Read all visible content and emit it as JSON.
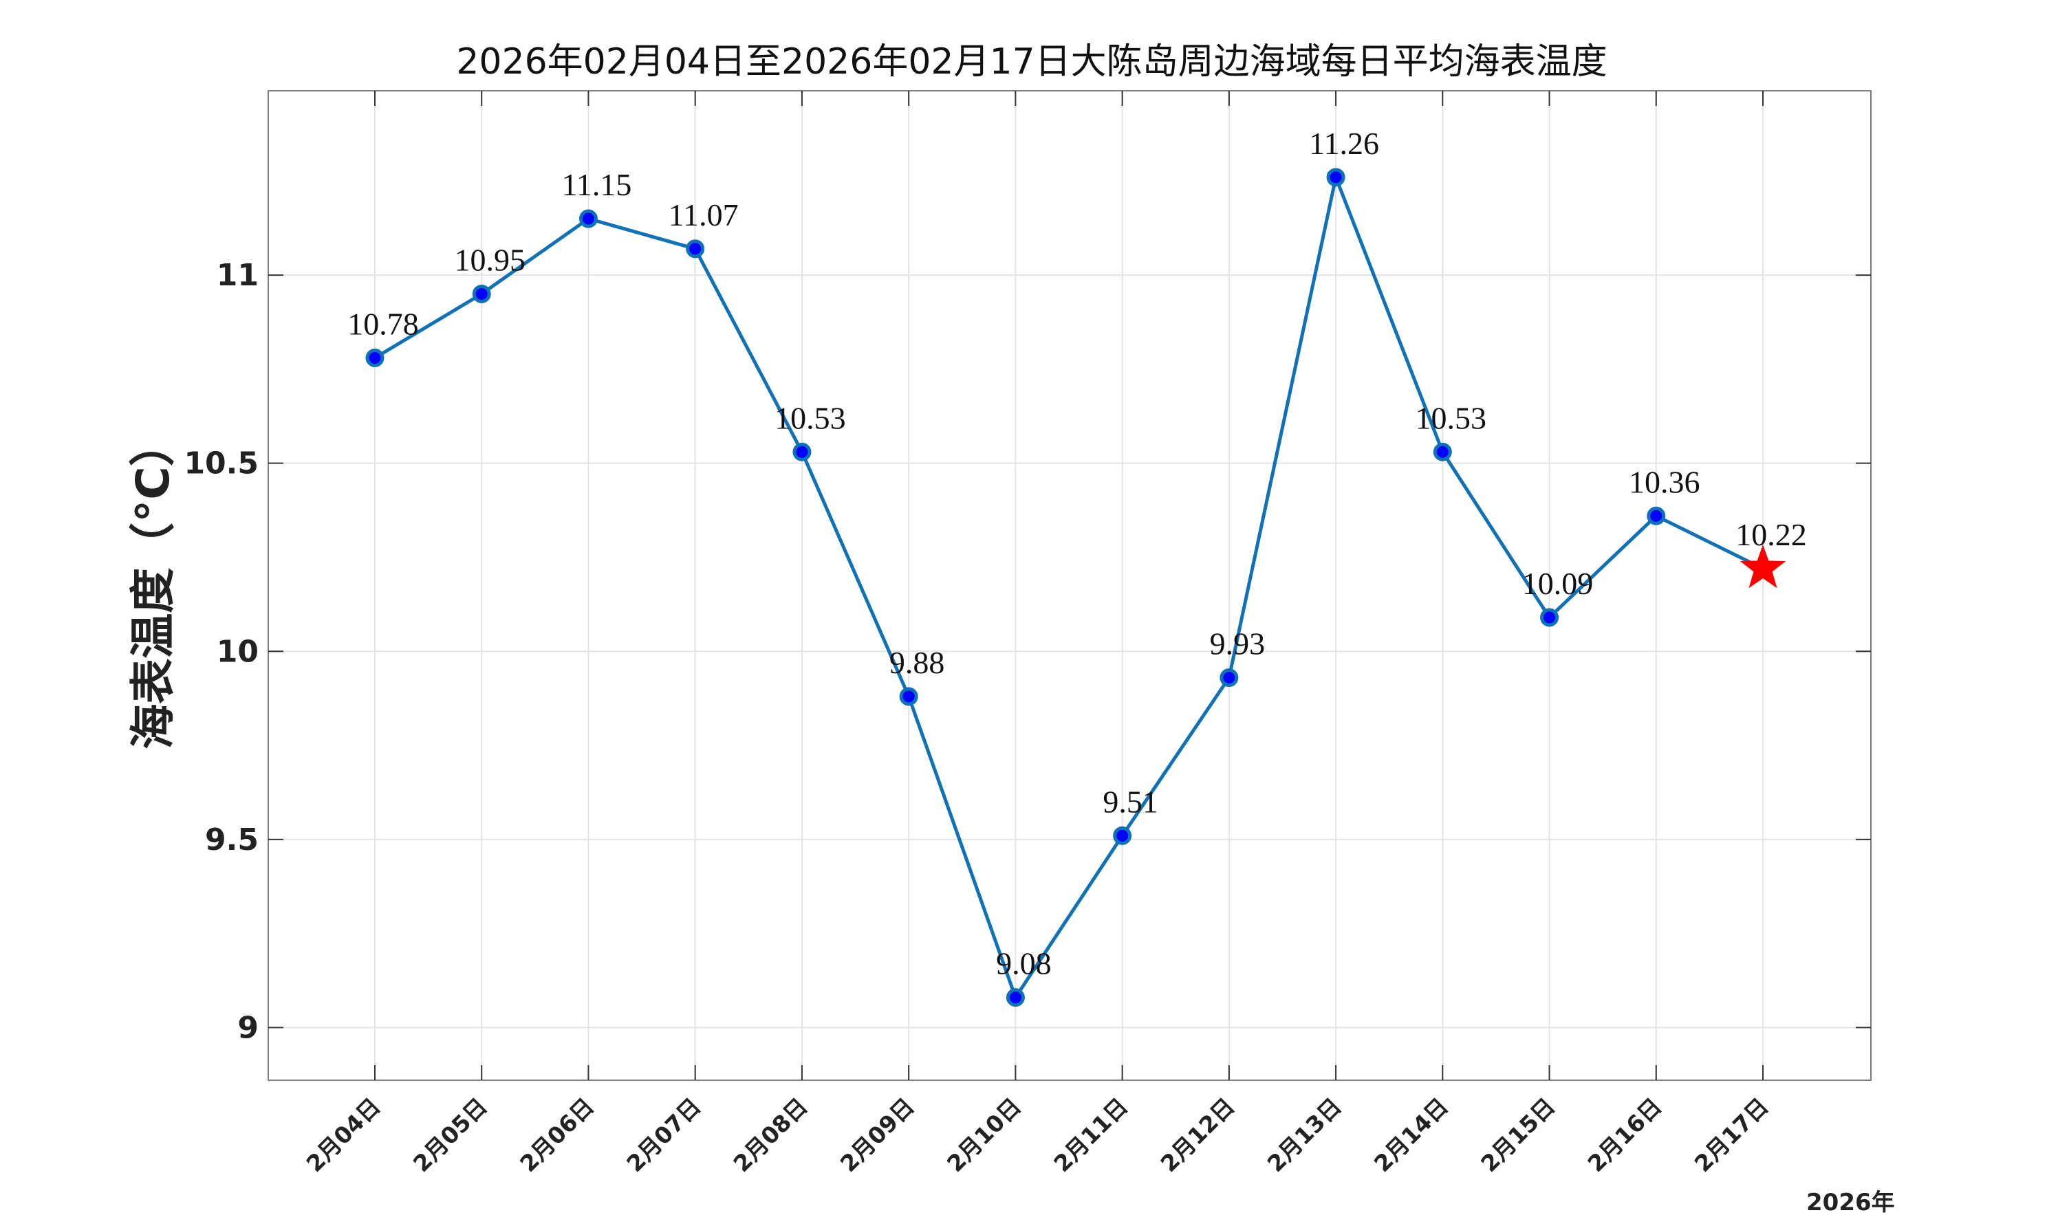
{
  "chart_data": {
    "type": "line",
    "title": "2026年02月04日至2026年02月17日大陈岛周边海域每日平均海表温度",
    "ylabel": "海表温度（°C）",
    "xlabel": "",
    "year_label": "2026年",
    "categories": [
      "2月04日",
      "2月05日",
      "2月06日",
      "2月07日",
      "2月08日",
      "2月09日",
      "2月10日",
      "2月11日",
      "2月12日",
      "2月13日",
      "2月14日",
      "2月15日",
      "2月16日",
      "2月17日"
    ],
    "values": [
      10.78,
      10.95,
      11.15,
      11.07,
      10.53,
      9.88,
      9.08,
      9.51,
      9.93,
      11.26,
      10.53,
      10.09,
      10.36,
      10.22
    ],
    "data_labels": [
      "10.78",
      "10.95",
      "11.15",
      "11.07",
      "10.53",
      "9.88",
      "9.08",
      "9.51",
      "9.93",
      "11.26",
      "10.53",
      "10.09",
      "10.36",
      "10.22"
    ],
    "ylim": [
      8.86,
      11.49
    ],
    "yticks": [
      9,
      9.5,
      10,
      10.5,
      11
    ],
    "ytick_labels": [
      "9",
      "9.5",
      "10",
      "10.5",
      "11"
    ],
    "grid": true,
    "line_color": "#0f72b8",
    "marker_fill": "#0000ff",
    "highlight_last": {
      "marker": "star",
      "color": "#ff0000"
    }
  }
}
